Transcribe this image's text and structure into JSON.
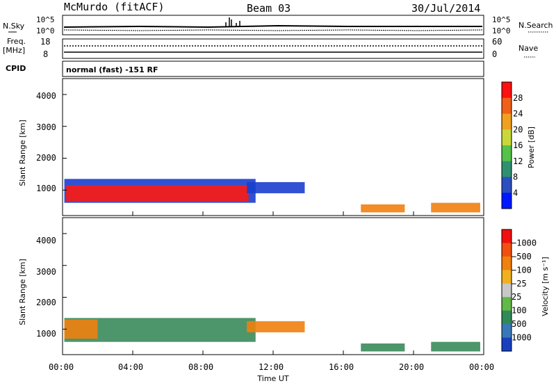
{
  "header": {
    "station": "McMurdo (fitACF)",
    "beam": "Beam 03",
    "date": "30/Jul/2014"
  },
  "noise_panel": {
    "left_label": "N.Sky",
    "left_ticks": [
      "10^5",
      "10^0"
    ],
    "right_label": "N.Search",
    "right_ticks": [
      "10^5",
      "10^0"
    ]
  },
  "freq_panel": {
    "left_label_1": "Freq.",
    "left_label_2": "[MHz]",
    "left_ticks": [
      "18",
      "8"
    ],
    "right_label": "Nave",
    "right_ticks": [
      "60",
      "0"
    ],
    "cpid_label": "CPID",
    "mode_text": "normal (fast) -151 RF"
  },
  "chart_data": [
    {
      "type": "heatmap",
      "title": "",
      "xlabel": "",
      "ylabel": "Slant Range [km]",
      "y_ticks": [
        "1000",
        "2000",
        "3000",
        "4000"
      ],
      "ylim": [
        200,
        4500
      ],
      "colorbar": {
        "label": "Power [dB]",
        "tick_labels": [
          "4",
          "8",
          "12",
          "16",
          "20",
          "24",
          "28"
        ],
        "colors": [
          "#0018ff",
          "#2b4fbe",
          "#2f9070",
          "#55c24a",
          "#c8d83a",
          "#f0a020",
          "#f06018",
          "#ff1010"
        ],
        "range": [
          0,
          30
        ]
      },
      "regions": [
        {
          "t_start": 0.1,
          "t_end": 11.0,
          "r_min": 600,
          "r_max": 1350,
          "level": "blue"
        },
        {
          "t_start": 0.2,
          "t_end": 10.6,
          "r_min": 650,
          "r_max": 1150,
          "level": "red"
        },
        {
          "t_start": 10.5,
          "t_end": 13.8,
          "r_min": 900,
          "r_max": 1250,
          "level": "blue"
        },
        {
          "t_start": 17.0,
          "t_end": 19.5,
          "r_min": 300,
          "r_max": 550,
          "level": "orange"
        },
        {
          "t_start": 21.0,
          "t_end": 23.8,
          "r_min": 300,
          "r_max": 600,
          "level": "orange"
        }
      ]
    },
    {
      "type": "heatmap",
      "title": "",
      "xlabel": "Time UT",
      "ylabel": "Slant Range [km]",
      "x_ticks": [
        "00:00",
        "04:00",
        "08:00",
        "12:00",
        "16:00",
        "20:00",
        "00:00"
      ],
      "y_ticks": [
        "1000",
        "2000",
        "3000",
        "4000"
      ],
      "ylim": [
        200,
        4500
      ],
      "colorbar": {
        "label": "Velocity [m s⁻¹]",
        "tick_labels": [
          "1000",
          "500",
          "100",
          "25",
          "−25",
          "−100",
          "−500",
          "−1000"
        ],
        "colors": [
          "#1840c0",
          "#3878b8",
          "#2f8a58",
          "#62b848",
          "#c8c8c8",
          "#f0b020",
          "#f08010",
          "#f05010",
          "#f01010"
        ],
        "range": [
          -1000,
          1000
        ]
      },
      "regions": [
        {
          "t_start": 0.1,
          "t_end": 11.0,
          "r_min": 600,
          "r_max": 1350,
          "level": "green"
        },
        {
          "t_start": 0.1,
          "t_end": 2.0,
          "r_min": 700,
          "r_max": 1300,
          "level": "orange"
        },
        {
          "t_start": 10.5,
          "t_end": 13.8,
          "r_min": 900,
          "r_max": 1250,
          "level": "orange"
        },
        {
          "t_start": 17.0,
          "t_end": 19.5,
          "r_min": 300,
          "r_max": 550,
          "level": "green"
        },
        {
          "t_start": 21.0,
          "t_end": 23.8,
          "r_min": 300,
          "r_max": 600,
          "level": "green"
        }
      ]
    }
  ]
}
